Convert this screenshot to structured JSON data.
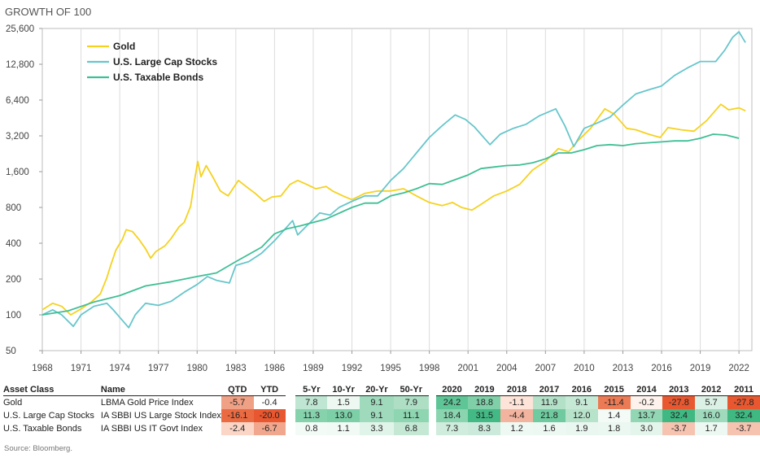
{
  "chart_data": {
    "type": "line",
    "title": "GROWTH OF 100",
    "y_scale": "log",
    "ylim": [
      50,
      25600
    ],
    "y_ticks": [
      "50",
      "100",
      "200",
      "400",
      "800",
      "1,600",
      "3,200",
      "6,400",
      "12,800",
      "25,600"
    ],
    "y_tick_values": [
      50,
      100,
      200,
      400,
      800,
      1600,
      3200,
      6400,
      12800,
      25600
    ],
    "xlim": [
      1968,
      2023
    ],
    "x_ticks": [
      "1968",
      "1971",
      "1974",
      "1977",
      "1980",
      "1983",
      "1986",
      "1989",
      "1992",
      "1995",
      "1998",
      "2001",
      "2004",
      "2007",
      "2010",
      "2013",
      "2016",
      "2019",
      "2022"
    ],
    "x_tick_values": [
      1968,
      1971,
      1974,
      1977,
      1980,
      1983,
      1986,
      1989,
      1992,
      1995,
      1998,
      2001,
      2004,
      2007,
      2010,
      2013,
      2016,
      2019,
      2022
    ],
    "grid": "vertical",
    "legend_position": "top-left",
    "series": [
      {
        "name": "Gold",
        "color": "#f5d21f",
        "points": [
          [
            1968,
            110
          ],
          [
            1968.8,
            125
          ],
          [
            1969.5,
            118
          ],
          [
            1970.2,
            100
          ],
          [
            1971,
            112
          ],
          [
            1971.8,
            128
          ],
          [
            1972.5,
            150
          ],
          [
            1973,
            205
          ],
          [
            1973.3,
            260
          ],
          [
            1973.7,
            350
          ],
          [
            1974.2,
            430
          ],
          [
            1974.5,
            520
          ],
          [
            1975,
            500
          ],
          [
            1975.5,
            430
          ],
          [
            1976,
            360
          ],
          [
            1976.4,
            300
          ],
          [
            1976.8,
            340
          ],
          [
            1977.5,
            380
          ],
          [
            1978,
            440
          ],
          [
            1978.6,
            550
          ],
          [
            1979,
            600
          ],
          [
            1979.5,
            820
          ],
          [
            1979.8,
            1350
          ],
          [
            1980.05,
            1950
          ],
          [
            1980.3,
            1450
          ],
          [
            1980.7,
            1800
          ],
          [
            1981.2,
            1450
          ],
          [
            1981.8,
            1100
          ],
          [
            1982.4,
            1000
          ],
          [
            1983.2,
            1350
          ],
          [
            1983.8,
            1200
          ],
          [
            1984.5,
            1050
          ],
          [
            1985.2,
            900
          ],
          [
            1985.8,
            980
          ],
          [
            1986.5,
            1000
          ],
          [
            1987.2,
            1250
          ],
          [
            1987.8,
            1350
          ],
          [
            1988.5,
            1250
          ],
          [
            1989.2,
            1150
          ],
          [
            1990,
            1200
          ],
          [
            1990.5,
            1100
          ],
          [
            1991.3,
            1000
          ],
          [
            1992,
            930
          ],
          [
            1993,
            1050
          ],
          [
            1994,
            1100
          ],
          [
            1995,
            1100
          ],
          [
            1996,
            1150
          ],
          [
            1997,
            1000
          ],
          [
            1998,
            880
          ],
          [
            1999,
            830
          ],
          [
            1999.8,
            880
          ],
          [
            2000.5,
            800
          ],
          [
            2001.3,
            760
          ],
          [
            2002,
            850
          ],
          [
            2003,
            1000
          ],
          [
            2004,
            1100
          ],
          [
            2005,
            1250
          ],
          [
            2006,
            1650
          ],
          [
            2007,
            1950
          ],
          [
            2008,
            2500
          ],
          [
            2008.8,
            2350
          ],
          [
            2009.5,
            2900
          ],
          [
            2010.5,
            3700
          ],
          [
            2011.6,
            5400
          ],
          [
            2012.3,
            4900
          ],
          [
            2013.3,
            3700
          ],
          [
            2014,
            3600
          ],
          [
            2015,
            3300
          ],
          [
            2015.9,
            3100
          ],
          [
            2016.5,
            3750
          ],
          [
            2017.5,
            3600
          ],
          [
            2018.5,
            3500
          ],
          [
            2019.5,
            4300
          ],
          [
            2020.6,
            5900
          ],
          [
            2021.2,
            5300
          ],
          [
            2022,
            5500
          ],
          [
            2022.5,
            5200
          ]
        ]
      },
      {
        "name": "U.S. Large Cap Stocks",
        "color": "#67c6cc",
        "points": [
          [
            1968,
            100
          ],
          [
            1968.8,
            110
          ],
          [
            1969.5,
            100
          ],
          [
            1970.4,
            80
          ],
          [
            1971,
            100
          ],
          [
            1972,
            118
          ],
          [
            1973,
            125
          ],
          [
            1973.5,
            110
          ],
          [
            1974.2,
            90
          ],
          [
            1974.7,
            78
          ],
          [
            1975.2,
            100
          ],
          [
            1976,
            125
          ],
          [
            1977,
            120
          ],
          [
            1978,
            130
          ],
          [
            1979,
            155
          ],
          [
            1980,
            180
          ],
          [
            1980.8,
            210
          ],
          [
            1981.5,
            195
          ],
          [
            1982.5,
            185
          ],
          [
            1983,
            260
          ],
          [
            1984,
            280
          ],
          [
            1985,
            330
          ],
          [
            1986,
            420
          ],
          [
            1987.4,
            620
          ],
          [
            1987.8,
            470
          ],
          [
            1988.5,
            560
          ],
          [
            1989.5,
            720
          ],
          [
            1990.3,
            690
          ],
          [
            1991,
            800
          ],
          [
            1992,
            900
          ],
          [
            1993,
            1000
          ],
          [
            1994,
            1000
          ],
          [
            1995,
            1350
          ],
          [
            1996,
            1700
          ],
          [
            1997,
            2300
          ],
          [
            1998,
            3100
          ],
          [
            1999,
            3900
          ],
          [
            2000,
            4800
          ],
          [
            2000.8,
            4400
          ],
          [
            2001.5,
            3800
          ],
          [
            2002.7,
            2700
          ],
          [
            2003.5,
            3300
          ],
          [
            2004.5,
            3700
          ],
          [
            2005.5,
            4000
          ],
          [
            2006.5,
            4700
          ],
          [
            2007.8,
            5400
          ],
          [
            2008.5,
            3900
          ],
          [
            2009.2,
            2600
          ],
          [
            2010,
            3700
          ],
          [
            2011,
            4100
          ],
          [
            2012,
            4600
          ],
          [
            2013,
            5800
          ],
          [
            2014,
            7200
          ],
          [
            2015,
            7800
          ],
          [
            2016,
            8400
          ],
          [
            2017,
            10300
          ],
          [
            2018,
            11900
          ],
          [
            2019,
            13500
          ],
          [
            2020.2,
            13500
          ],
          [
            2020.9,
            16800
          ],
          [
            2021.5,
            21500
          ],
          [
            2022,
            24000
          ],
          [
            2022.5,
            19500
          ]
        ]
      },
      {
        "name": "U.S. Taxable Bonds",
        "color": "#3fbf96",
        "points": [
          [
            1968,
            100
          ],
          [
            1970,
            108
          ],
          [
            1972,
            128
          ],
          [
            1974,
            145
          ],
          [
            1976,
            175
          ],
          [
            1978,
            190
          ],
          [
            1980,
            210
          ],
          [
            1981.5,
            225
          ],
          [
            1983,
            280
          ],
          [
            1985,
            370
          ],
          [
            1986,
            480
          ],
          [
            1987,
            530
          ],
          [
            1988,
            560
          ],
          [
            1990,
            640
          ],
          [
            1992,
            800
          ],
          [
            1993,
            870
          ],
          [
            1994,
            870
          ],
          [
            1995,
            1000
          ],
          [
            1996,
            1060
          ],
          [
            1997,
            1150
          ],
          [
            1998,
            1270
          ],
          [
            1999,
            1250
          ],
          [
            2000,
            1370
          ],
          [
            2001,
            1500
          ],
          [
            2002,
            1700
          ],
          [
            2003,
            1750
          ],
          [
            2004,
            1800
          ],
          [
            2005,
            1820
          ],
          [
            2006,
            1900
          ],
          [
            2007,
            2050
          ],
          [
            2008,
            2300
          ],
          [
            2009,
            2300
          ],
          [
            2010,
            2450
          ],
          [
            2011,
            2650
          ],
          [
            2012,
            2700
          ],
          [
            2013,
            2650
          ],
          [
            2014,
            2750
          ],
          [
            2015,
            2800
          ],
          [
            2016,
            2850
          ],
          [
            2017,
            2900
          ],
          [
            2018,
            2900
          ],
          [
            2019,
            3050
          ],
          [
            2020,
            3300
          ],
          [
            2021,
            3250
          ],
          [
            2022,
            3050
          ]
        ]
      }
    ]
  },
  "table": {
    "headers": {
      "asset_class": "Asset Class",
      "name": "Name",
      "group1": [
        "QTD",
        "YTD"
      ],
      "group2": [
        "5-Yr",
        "10-Yr",
        "20-Yr",
        "50-Yr"
      ],
      "group3": [
        "2020",
        "2019",
        "2018",
        "2017",
        "2016",
        "2015",
        "2014",
        "2013",
        "2012",
        "2011"
      ]
    },
    "rows": [
      {
        "asset_class": "Gold",
        "name": "LBMA Gold Price Index",
        "values": [
          "-5.7",
          "-0.4",
          "7.8",
          "1.5",
          "9.1",
          "7.9",
          "24.2",
          "18.8",
          "-1.1",
          "11.9",
          "9.1",
          "-11.4",
          "-0.2",
          "-27.8",
          "5.7",
          "-27.8"
        ],
        "colors": [
          "#f0a085",
          "#ffffff",
          "#bfe6d2",
          "#eef8f2",
          "#9fdabd",
          "#aedfc5",
          "#5ec596",
          "#7fd0a9",
          "#fde3d8",
          "#b3e1c8",
          "#c6e9d6",
          "#ec7a54",
          "#fdf2ec",
          "#e8572f",
          "#dcf1e5",
          "#e8572f"
        ]
      },
      {
        "asset_class": "U.S. Large Cap Stocks",
        "name": "IA SBBI US Large Stock Index",
        "values": [
          "-16.1",
          "-20.0",
          "11.3",
          "13.0",
          "9.1",
          "11.1",
          "18.4",
          "31.5",
          "-4.4",
          "21.8",
          "12.0",
          "1.4",
          "13.7",
          "32.4",
          "16.0",
          "32.4"
        ],
        "colors": [
          "#ea6a42",
          "#e8572f",
          "#86d2ad",
          "#7ccfa7",
          "#9fdabd",
          "#8ed5b2",
          "#8ad4b0",
          "#43ba85",
          "#f3b49f",
          "#6fca9f",
          "#b8e3cb",
          "#f4fbf7",
          "#92d6b4",
          "#3fb882",
          "#9fdabd",
          "#3fb882"
        ]
      },
      {
        "asset_class": "U.S. Taxable Bonds",
        "name": "IA SBBI US IT Govt Index",
        "values": [
          "-2.4",
          "-6.7",
          "0.8",
          "1.1",
          "3.3",
          "6.8",
          "7.3",
          "8.3",
          "1.2",
          "1.6",
          "1.9",
          "1.8",
          "3.0",
          "-3.7",
          "1.7",
          "-3.7"
        ],
        "colors": [
          "#fbd5c6",
          "#f1a78e",
          "#f3fbf7",
          "#f1faf5",
          "#e1f4ea",
          "#c5e8d5",
          "#d0ecdd",
          "#cbeadb",
          "#eff9f4",
          "#edf8f2",
          "#eaf7f0",
          "#ebf7f1",
          "#e4f5eb",
          "#f6c3b1",
          "#ecf8f1",
          "#f6c3b1"
        ]
      }
    ]
  },
  "source": "Source: Bloomberg."
}
